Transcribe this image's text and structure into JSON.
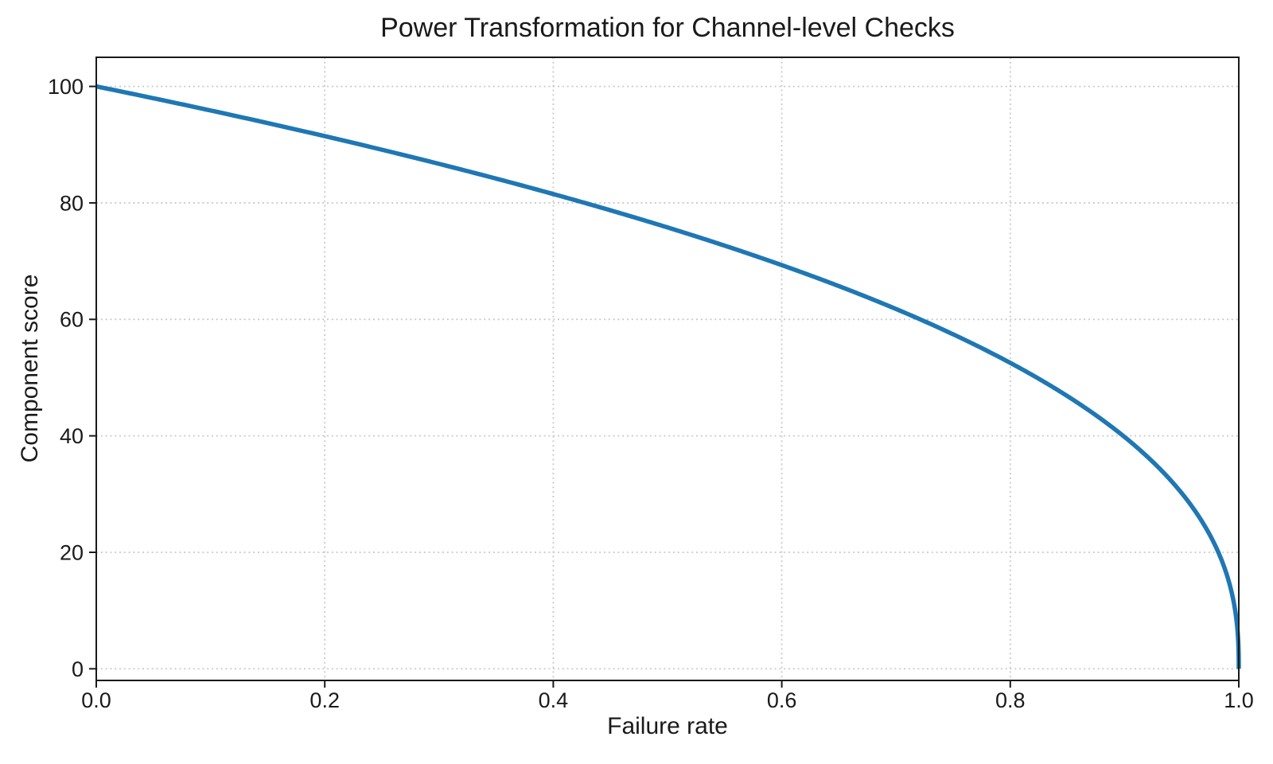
{
  "chart_data": {
    "type": "line",
    "title": "Power Transformation for Channel-level Checks",
    "xlabel": "Failure rate",
    "ylabel": "Component score",
    "xlim": [
      0,
      1
    ],
    "ylim": [
      -2,
      105
    ],
    "grid": {
      "visible": true,
      "style": "dotted",
      "color": "#c9c9c9"
    },
    "axes": {
      "spine_color": "#1a1a1a",
      "tick_color": "#1a1a1a",
      "background": "#ffffff"
    },
    "xticks": {
      "values": [
        0,
        0.2,
        0.4,
        0.6,
        0.8,
        1.0
      ],
      "labels": [
        "0.0",
        "0.2",
        "0.4",
        "0.6",
        "0.8",
        "1.0"
      ]
    },
    "yticks": {
      "values": [
        0,
        20,
        40,
        60,
        80,
        100
      ],
      "labels": [
        "0",
        "20",
        "40",
        "60",
        "80",
        "100"
      ]
    },
    "series": [
      {
        "name": "power-transform-curve",
        "formula": "score = 100 * (1 - failure_rate)^0.4",
        "scale": 100,
        "exponent": 0.4,
        "color": "#1f77b4",
        "line_width": 5.5,
        "x": [
          0,
          0.05,
          0.1,
          0.15,
          0.2,
          0.25,
          0.3,
          0.35,
          0.4,
          0.45,
          0.5,
          0.55,
          0.6,
          0.65,
          0.7,
          0.75,
          0.8,
          0.85,
          0.9,
          0.92,
          0.94,
          0.96,
          0.98,
          0.99,
          0.995,
          0.999,
          1.0
        ],
        "y": [
          100,
          97.97,
          95.87,
          93.71,
          91.46,
          89.13,
          86.7,
          84.17,
          81.52,
          78.73,
          75.79,
          72.66,
          69.31,
          65.71,
          61.77,
          57.43,
          52.53,
          46.83,
          39.81,
          36.41,
          32.45,
          27.6,
          20.91,
          15.85,
          12.01,
          6.31,
          0
        ]
      }
    ]
  }
}
